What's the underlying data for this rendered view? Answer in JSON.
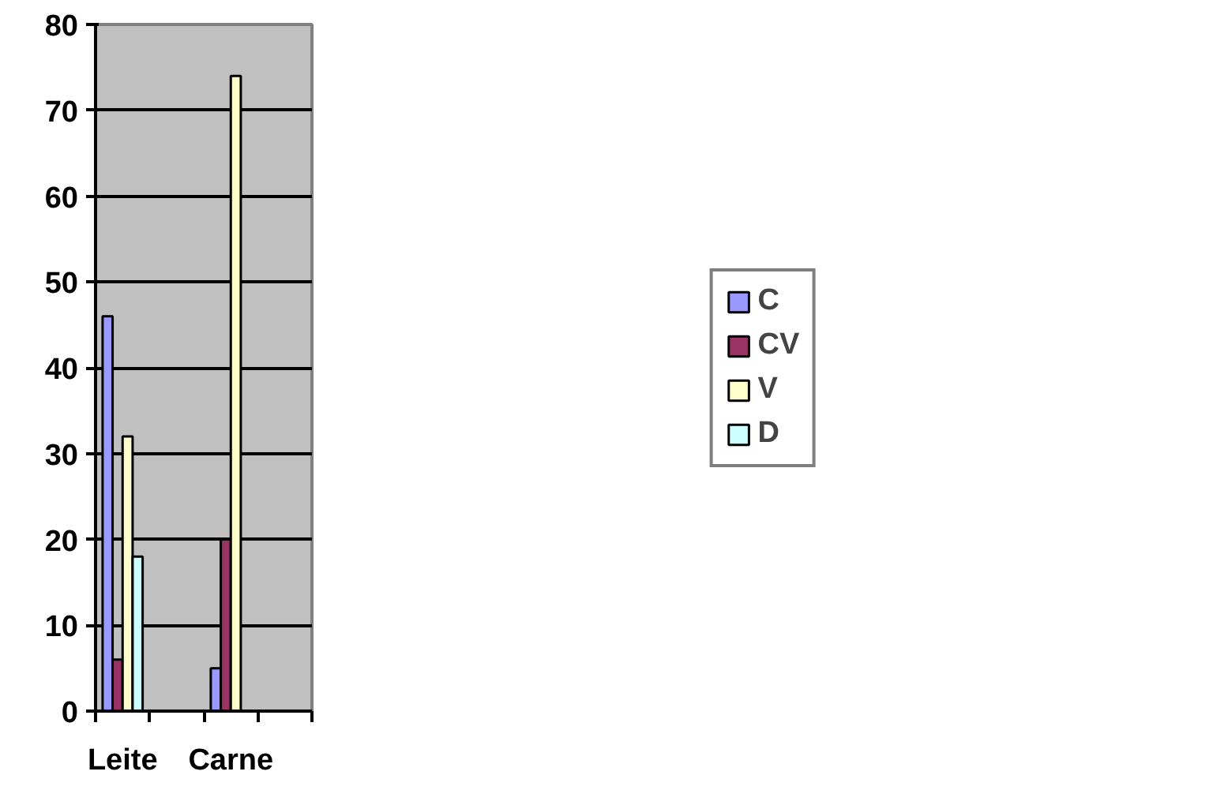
{
  "chart_data": {
    "type": "bar",
    "categories": [
      "Leite",
      null,
      "Carne",
      null
    ],
    "series": [
      {
        "name": "C",
        "color": "#9999ff",
        "values": [
          46,
          null,
          5,
          null
        ]
      },
      {
        "name": "CV",
        "color": "#993366",
        "values": [
          6,
          null,
          20,
          null
        ]
      },
      {
        "name": "V",
        "color": "#ffffcc",
        "values": [
          32,
          null,
          74,
          null
        ]
      },
      {
        "name": "D",
        "color": "#ccffff",
        "values": [
          18,
          null,
          null,
          null
        ]
      }
    ],
    "ylim": [
      0,
      80
    ],
    "yticks": [
      0,
      10,
      20,
      30,
      40,
      50,
      60,
      70,
      80
    ],
    "grid": "y",
    "legend": "right"
  }
}
